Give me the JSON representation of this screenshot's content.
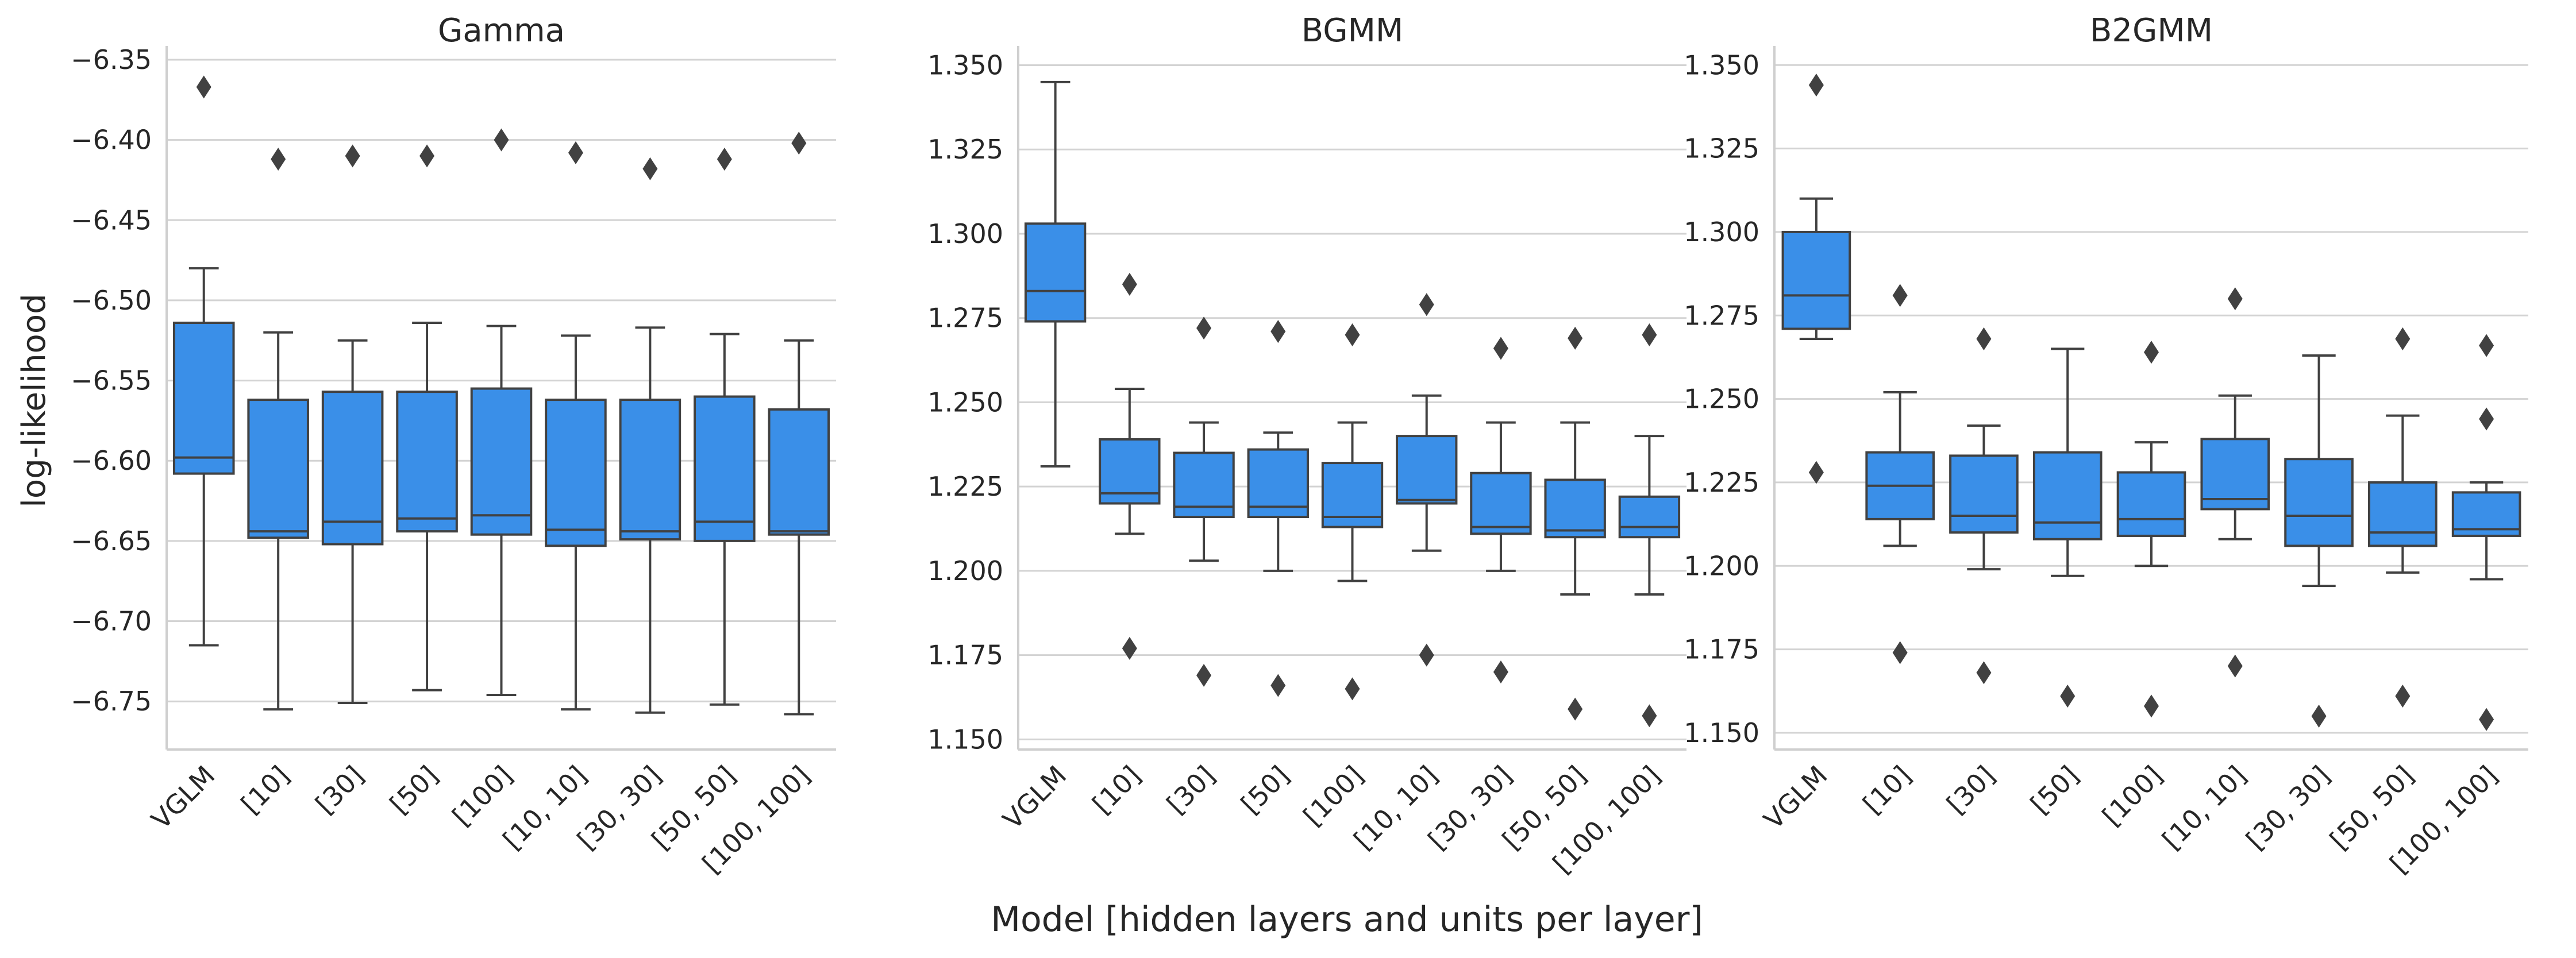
{
  "chart_data": [
    {
      "type": "box",
      "title": "Gamma",
      "ylabel": "log-likelihood",
      "xlabel": "",
      "ylim": [
        -6.78,
        -6.345
      ],
      "yticks": [
        -6.75,
        -6.7,
        -6.65,
        -6.6,
        -6.55,
        -6.5,
        -6.45,
        -6.4,
        -6.35
      ],
      "ytick_labels": [
        "−6.75",
        "−6.70",
        "−6.65",
        "−6.60",
        "−6.55",
        "−6.50",
        "−6.45",
        "−6.40",
        "−6.35"
      ],
      "box_color": "#3a8fe8",
      "categories": [
        "VGLM",
        "[10]",
        "[30]",
        "[50]",
        "[100]",
        "[10, 10]",
        "[30, 30]",
        "[50, 50]",
        "[100, 100]"
      ],
      "boxes": [
        {
          "whislo": -6.715,
          "q1": -6.608,
          "med": -6.598,
          "q3": -6.514,
          "whishi": -6.48,
          "fliers": [
            -6.367
          ]
        },
        {
          "whislo": -6.755,
          "q1": -6.648,
          "med": -6.644,
          "q3": -6.562,
          "whishi": -6.52,
          "fliers": [
            -6.412
          ]
        },
        {
          "whislo": -6.751,
          "q1": -6.652,
          "med": -6.638,
          "q3": -6.557,
          "whishi": -6.525,
          "fliers": [
            -6.41
          ]
        },
        {
          "whislo": -6.743,
          "q1": -6.644,
          "med": -6.636,
          "q3": -6.557,
          "whishi": -6.514,
          "fliers": [
            -6.41
          ]
        },
        {
          "whislo": -6.746,
          "q1": -6.646,
          "med": -6.634,
          "q3": -6.555,
          "whishi": -6.516,
          "fliers": [
            -6.4
          ]
        },
        {
          "whislo": -6.755,
          "q1": -6.653,
          "med": -6.643,
          "q3": -6.562,
          "whishi": -6.522,
          "fliers": [
            -6.408
          ]
        },
        {
          "whislo": -6.757,
          "q1": -6.649,
          "med": -6.644,
          "q3": -6.562,
          "whishi": -6.517,
          "fliers": [
            -6.418
          ]
        },
        {
          "whislo": -6.752,
          "q1": -6.65,
          "med": -6.638,
          "q3": -6.56,
          "whishi": -6.521,
          "fliers": [
            -6.412
          ]
        },
        {
          "whislo": -6.758,
          "q1": -6.646,
          "med": -6.644,
          "q3": -6.568,
          "whishi": -6.525,
          "fliers": [
            -6.402
          ]
        }
      ]
    },
    {
      "type": "box",
      "title": "BGMM",
      "ylabel": "",
      "xlabel": "Model [hidden layers and units per layer]",
      "ylim": [
        1.147,
        1.354
      ],
      "yticks": [
        1.15,
        1.175,
        1.2,
        1.225,
        1.25,
        1.275,
        1.3,
        1.325,
        1.35
      ],
      "ytick_labels": [
        "1.150",
        "1.175",
        "1.200",
        "1.225",
        "1.250",
        "1.275",
        "1.300",
        "1.325",
        "1.350"
      ],
      "box_color": "#3a8fe8",
      "categories": [
        "VGLM",
        "[10]",
        "[30]",
        "[50]",
        "[100]",
        "[10, 10]",
        "[30, 30]",
        "[50, 50]",
        "[100, 100]"
      ],
      "boxes": [
        {
          "whislo": 1.231,
          "q1": 1.274,
          "med": 1.283,
          "q3": 1.303,
          "whishi": 1.345,
          "fliers": []
        },
        {
          "whislo": 1.211,
          "q1": 1.22,
          "med": 1.223,
          "q3": 1.239,
          "whishi": 1.254,
          "fliers": [
            1.285,
            1.177
          ]
        },
        {
          "whislo": 1.203,
          "q1": 1.216,
          "med": 1.219,
          "q3": 1.235,
          "whishi": 1.244,
          "fliers": [
            1.272,
            1.169
          ]
        },
        {
          "whislo": 1.2,
          "q1": 1.216,
          "med": 1.219,
          "q3": 1.236,
          "whishi": 1.241,
          "fliers": [
            1.271,
            1.166
          ]
        },
        {
          "whislo": 1.197,
          "q1": 1.213,
          "med": 1.216,
          "q3": 1.232,
          "whishi": 1.244,
          "fliers": [
            1.27,
            1.165
          ]
        },
        {
          "whislo": 1.206,
          "q1": 1.22,
          "med": 1.221,
          "q3": 1.24,
          "whishi": 1.252,
          "fliers": [
            1.279,
            1.175
          ]
        },
        {
          "whislo": 1.2,
          "q1": 1.211,
          "med": 1.213,
          "q3": 1.229,
          "whishi": 1.244,
          "fliers": [
            1.266,
            1.17
          ]
        },
        {
          "whislo": 1.193,
          "q1": 1.21,
          "med": 1.212,
          "q3": 1.227,
          "whishi": 1.244,
          "fliers": [
            1.269,
            1.159
          ]
        },
        {
          "whislo": 1.193,
          "q1": 1.21,
          "med": 1.213,
          "q3": 1.222,
          "whishi": 1.24,
          "fliers": [
            1.27,
            1.157
          ]
        }
      ]
    },
    {
      "type": "box",
      "title": "B2GMM",
      "ylabel": "",
      "xlabel": "",
      "ylim": [
        1.145,
        1.354
      ],
      "yticks": [
        1.15,
        1.175,
        1.2,
        1.225,
        1.25,
        1.275,
        1.3,
        1.325,
        1.35
      ],
      "ytick_labels": [
        "1.150",
        "1.175",
        "1.200",
        "1.225",
        "1.250",
        "1.275",
        "1.300",
        "1.325",
        "1.350"
      ],
      "box_color": "#3a8fe8",
      "categories": [
        "VGLM",
        "[10]",
        "[30]",
        "[50]",
        "[100]",
        "[10, 10]",
        "[30, 30]",
        "[50, 50]",
        "[100, 100]"
      ],
      "boxes": [
        {
          "whislo": 1.268,
          "q1": 1.271,
          "med": 1.281,
          "q3": 1.3,
          "whishi": 1.31,
          "fliers": [
            1.344,
            1.228
          ]
        },
        {
          "whislo": 1.206,
          "q1": 1.214,
          "med": 1.224,
          "q3": 1.234,
          "whishi": 1.252,
          "fliers": [
            1.281,
            1.174
          ]
        },
        {
          "whislo": 1.199,
          "q1": 1.21,
          "med": 1.215,
          "q3": 1.233,
          "whishi": 1.242,
          "fliers": [
            1.268,
            1.168
          ]
        },
        {
          "whislo": 1.197,
          "q1": 1.208,
          "med": 1.213,
          "q3": 1.234,
          "whishi": 1.265,
          "fliers": [
            1.161
          ]
        },
        {
          "whislo": 1.2,
          "q1": 1.209,
          "med": 1.214,
          "q3": 1.228,
          "whishi": 1.237,
          "fliers": [
            1.264,
            1.158
          ]
        },
        {
          "whislo": 1.208,
          "q1": 1.217,
          "med": 1.22,
          "q3": 1.238,
          "whishi": 1.251,
          "fliers": [
            1.28,
            1.17
          ]
        },
        {
          "whislo": 1.194,
          "q1": 1.206,
          "med": 1.215,
          "q3": 1.232,
          "whishi": 1.263,
          "fliers": [
            1.155
          ]
        },
        {
          "whislo": 1.198,
          "q1": 1.206,
          "med": 1.21,
          "q3": 1.225,
          "whishi": 1.245,
          "fliers": [
            1.268,
            1.161
          ]
        },
        {
          "whislo": 1.196,
          "q1": 1.209,
          "med": 1.211,
          "q3": 1.222,
          "whishi": 1.225,
          "fliers": [
            1.266,
            1.244,
            1.154
          ]
        }
      ]
    }
  ]
}
